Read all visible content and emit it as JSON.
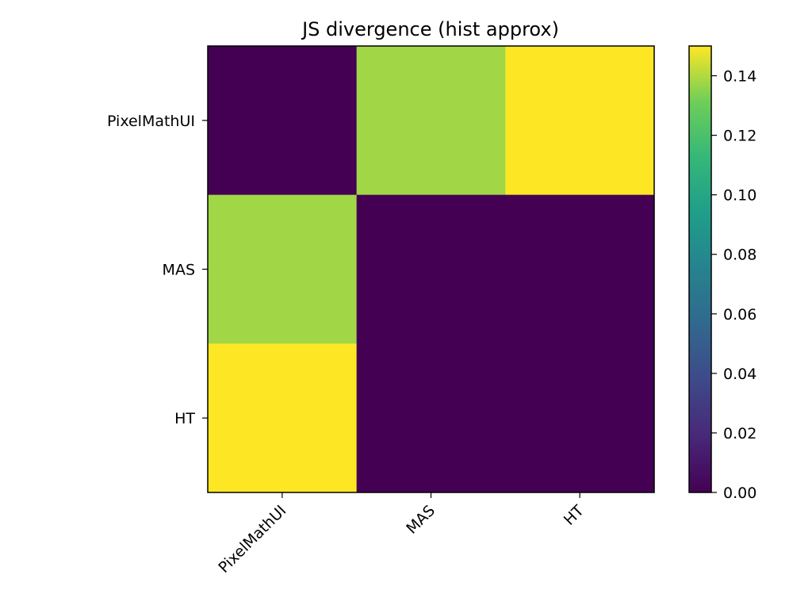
{
  "chart_data": {
    "type": "heatmap",
    "title": "JS divergence (hist approx)",
    "xlabel": "",
    "ylabel": "",
    "x_categories": [
      "PixelMathUI",
      "MAS",
      "HT"
    ],
    "y_categories": [
      "PixelMathUI",
      "MAS",
      "HT"
    ],
    "values": [
      [
        0.0,
        0.138,
        0.15
      ],
      [
        0.138,
        0.0,
        0.0
      ],
      [
        0.15,
        0.0,
        0.0
      ]
    ],
    "colormap": "viridis",
    "vmin": 0.0,
    "vmax": 0.15,
    "colorbar": {
      "ticks": [
        0.0,
        0.02,
        0.04,
        0.06,
        0.08,
        0.1,
        0.12,
        0.14
      ],
      "tick_labels": [
        "0.00",
        "0.02",
        "0.04",
        "0.06",
        "0.08",
        "0.10",
        "0.12",
        "0.14"
      ],
      "placement": "right"
    },
    "grid": false
  }
}
